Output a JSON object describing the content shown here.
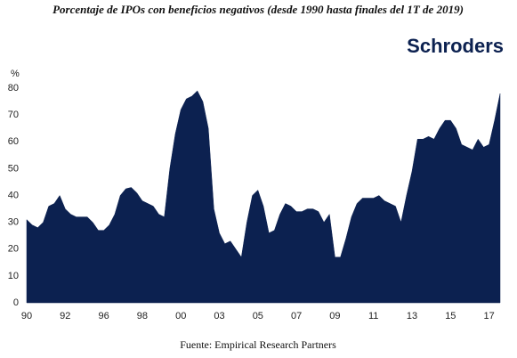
{
  "chart_data": {
    "type": "area",
    "title": "Porcentaje de IPOs con beneficios negativos (desde 1990 hasta finales del 1T de 2019)",
    "logo": "Schroders",
    "ylabel": "%",
    "source": "Fuente: Empirical Research Partners",
    "categories": [
      "90",
      null,
      null,
      null,
      null,
      null,
      null,
      "92",
      null,
      null,
      null,
      null,
      null,
      null,
      "96",
      null,
      null,
      null,
      null,
      null,
      null,
      "98",
      null,
      null,
      null,
      null,
      null,
      null,
      "00",
      null,
      null,
      null,
      null,
      null,
      null,
      "03",
      null,
      null,
      null,
      null,
      null,
      null,
      "05",
      null,
      null,
      null,
      null,
      null,
      null,
      "07",
      null,
      null,
      null,
      null,
      null,
      null,
      "09",
      null,
      null,
      null,
      null,
      null,
      null,
      "11",
      null,
      null,
      null,
      null,
      null,
      null,
      "13",
      null,
      null,
      null,
      null,
      null,
      null,
      "15",
      null,
      null,
      null,
      null,
      null,
      null,
      "17",
      null,
      null
    ],
    "values": [
      31,
      29,
      28,
      30,
      36,
      37,
      40,
      35,
      33,
      32,
      32,
      32,
      30,
      27,
      27,
      29,
      33,
      40,
      42.5,
      43,
      41,
      38,
      37,
      36,
      33,
      32,
      50,
      63,
      72,
      76,
      77,
      79,
      75,
      65,
      35,
      26,
      22,
      23,
      20,
      17,
      30,
      40,
      42,
      36,
      26,
      27,
      33,
      37,
      36,
      34,
      34,
      35,
      35,
      34,
      30,
      33,
      17,
      17,
      24,
      32,
      37,
      39,
      39,
      39,
      40,
      38,
      37,
      36,
      30,
      40,
      49,
      61,
      61,
      62,
      61,
      65,
      68,
      68,
      65,
      59,
      58,
      57,
      61,
      58,
      59,
      68,
      78
    ],
    "color": "#0c2150",
    "ylim": [
      0,
      80
    ],
    "yticks": [
      0,
      10,
      20,
      30,
      40,
      50,
      60,
      70,
      80
    ],
    "grid": false
  }
}
